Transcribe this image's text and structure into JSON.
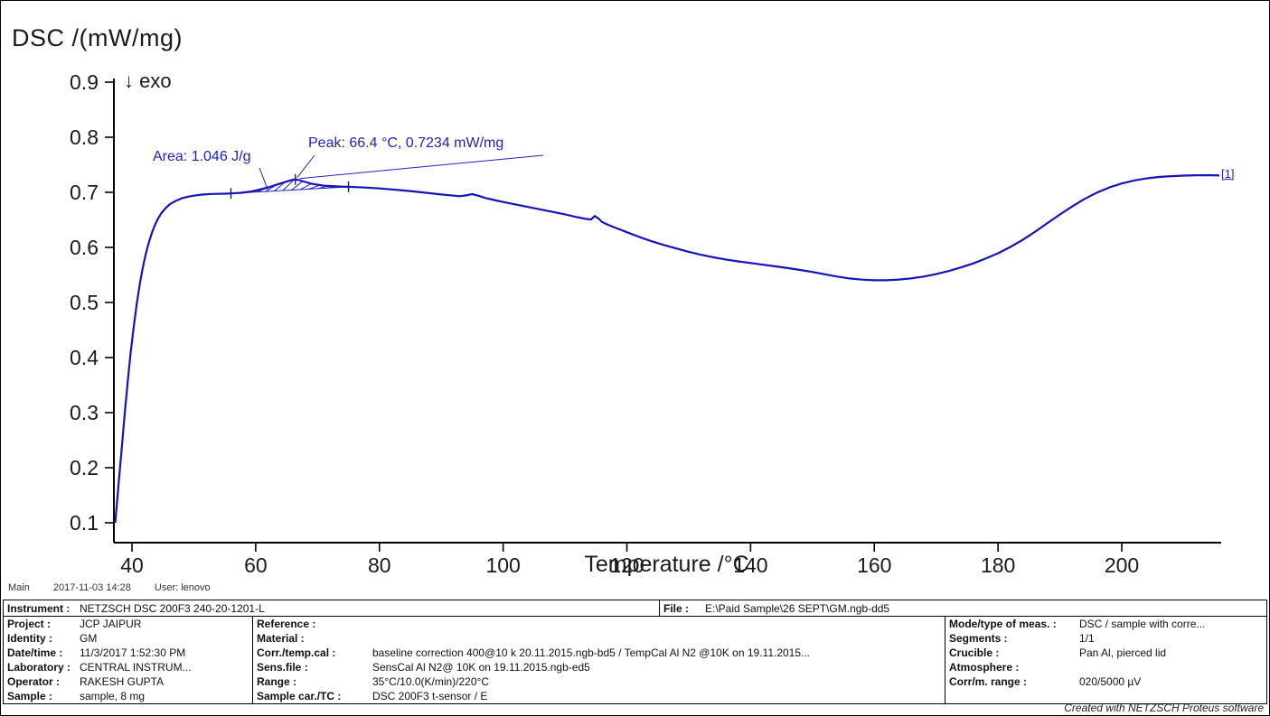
{
  "page": {
    "title": "DSC /(mW/mg)",
    "exo_label": "↓ exo",
    "curve_id": "[1]"
  },
  "annotations": {
    "area": "Area: 1.046 J/g",
    "peak": "Peak: 66.4 °C, 0.7234 mW/mg"
  },
  "status_line": {
    "view": "Main",
    "datetime": "2017-11-03 14:28",
    "user": "User: lenovo"
  },
  "footer_note": "Created with NETZSCH Proteus software",
  "chart_data": {
    "type": "line",
    "title": "DSC /(mW/mg)",
    "xlabel": "Temperature /°C",
    "ylabel": "DSC /(mW/mg)",
    "xlim": [
      35,
      216
    ],
    "ylim": [
      0.1,
      0.9
    ],
    "x_ticks": [
      40,
      60,
      80,
      100,
      120,
      140,
      160,
      180,
      200
    ],
    "y_ticks": [
      0.1,
      0.2,
      0.3,
      0.4,
      0.5,
      0.6,
      0.7,
      0.8,
      0.9
    ],
    "grid": false,
    "legend_position": "none",
    "line_color": "#1414b8",
    "annotation_color": "#2222bb",
    "peak": {
      "temp": 66.4,
      "value": 0.7234
    },
    "area": {
      "range_c": [
        56,
        75
      ],
      "value": "1.046 J/g"
    },
    "series": [
      {
        "name": "[1]",
        "points": [
          [
            37.3,
            0.1
          ],
          [
            37.8,
            0.165
          ],
          [
            38.3,
            0.23
          ],
          [
            38.8,
            0.295
          ],
          [
            39.3,
            0.355
          ],
          [
            39.8,
            0.41
          ],
          [
            40.3,
            0.458
          ],
          [
            40.8,
            0.5
          ],
          [
            41.3,
            0.536
          ],
          [
            41.8,
            0.566
          ],
          [
            42.3,
            0.591
          ],
          [
            42.8,
            0.612
          ],
          [
            43.3,
            0.629
          ],
          [
            43.8,
            0.643
          ],
          [
            44.3,
            0.654
          ],
          [
            44.8,
            0.663
          ],
          [
            45.5,
            0.672
          ],
          [
            46.2,
            0.679
          ],
          [
            47,
            0.684
          ],
          [
            48,
            0.689
          ],
          [
            49,
            0.692
          ],
          [
            50,
            0.694
          ],
          [
            51.5,
            0.696
          ],
          [
            53,
            0.697
          ],
          [
            55,
            0.6975
          ],
          [
            56,
            0.698
          ],
          [
            57.5,
            0.699
          ],
          [
            59,
            0.701
          ],
          [
            60,
            0.7035
          ],
          [
            61,
            0.706
          ],
          [
            62,
            0.709
          ],
          [
            63,
            0.7125
          ],
          [
            64,
            0.716
          ],
          [
            65,
            0.7195
          ],
          [
            66,
            0.7228
          ],
          [
            66.4,
            0.7234
          ],
          [
            67,
            0.7222
          ],
          [
            68,
            0.7188
          ],
          [
            69,
            0.7158
          ],
          [
            70,
            0.7138
          ],
          [
            71,
            0.7122
          ],
          [
            72,
            0.7114
          ],
          [
            73,
            0.7108
          ],
          [
            74,
            0.7104
          ],
          [
            75,
            0.71
          ],
          [
            76.5,
            0.7093
          ],
          [
            78,
            0.7086
          ],
          [
            80,
            0.707
          ],
          [
            82,
            0.7052
          ],
          [
            84,
            0.7032
          ],
          [
            86,
            0.701
          ],
          [
            88,
            0.6985
          ],
          [
            90,
            0.696
          ],
          [
            92,
            0.694
          ],
          [
            93,
            0.693
          ],
          [
            94,
            0.6945
          ],
          [
            95,
            0.6968
          ],
          [
            96,
            0.6938
          ],
          [
            97,
            0.69
          ],
          [
            98.5,
            0.686
          ],
          [
            100,
            0.6825
          ],
          [
            102,
            0.678
          ],
          [
            104,
            0.6735
          ],
          [
            106,
            0.669
          ],
          [
            108,
            0.6645
          ],
          [
            110,
            0.66
          ],
          [
            111.5,
            0.656
          ],
          [
            113,
            0.6525
          ],
          [
            114.2,
            0.6505
          ],
          [
            114.8,
            0.657
          ],
          [
            115.4,
            0.6525
          ],
          [
            116,
            0.646
          ],
          [
            117,
            0.6408
          ],
          [
            118,
            0.6363
          ],
          [
            119,
            0.632
          ],
          [
            120,
            0.6275
          ],
          [
            122,
            0.619
          ],
          [
            124,
            0.6112
          ],
          [
            126,
            0.6042
          ],
          [
            128,
            0.598
          ],
          [
            130,
            0.592
          ],
          [
            132,
            0.5866
          ],
          [
            134,
            0.582
          ],
          [
            136,
            0.578
          ],
          [
            138,
            0.5746
          ],
          [
            140,
            0.5716
          ],
          [
            142,
            0.5686
          ],
          [
            144,
            0.5656
          ],
          [
            146,
            0.5624
          ],
          [
            148,
            0.559
          ],
          [
            150,
            0.5554
          ],
          [
            152,
            0.5512
          ],
          [
            154,
            0.547
          ],
          [
            156,
            0.5436
          ],
          [
            158,
            0.5414
          ],
          [
            160,
            0.5404
          ],
          [
            162,
            0.5404
          ],
          [
            164,
            0.5416
          ],
          [
            166,
            0.5438
          ],
          [
            168,
            0.547
          ],
          [
            170,
            0.5514
          ],
          [
            172,
            0.557
          ],
          [
            174,
            0.5636
          ],
          [
            176,
            0.571
          ],
          [
            178,
            0.5796
          ],
          [
            180,
            0.5894
          ],
          [
            182,
            0.6008
          ],
          [
            184,
            0.6138
          ],
          [
            186,
            0.6285
          ],
          [
            188,
            0.6443
          ],
          [
            190,
            0.6598
          ],
          [
            192,
            0.6745
          ],
          [
            194,
            0.688
          ],
          [
            196,
            0.6995
          ],
          [
            198,
            0.7088
          ],
          [
            200,
            0.716
          ],
          [
            202,
            0.7214
          ],
          [
            204,
            0.7252
          ],
          [
            206,
            0.7278
          ],
          [
            208,
            0.7294
          ],
          [
            210,
            0.7304
          ],
          [
            212,
            0.731
          ],
          [
            214,
            0.7312
          ],
          [
            215.8,
            0.7305
          ]
        ]
      }
    ]
  },
  "table": {
    "instrument_label": "Instrument :",
    "instrument_value": "NETZSCH DSC 200F3 240-20-1201-L",
    "file_label": "File :",
    "file_value": "E:\\Paid Sample\\26 SEPT\\GM.ngb-dd5",
    "rows": [
      {
        "l1": "Project :",
        "v1": "JCP JAIPUR",
        "l2": "Reference :",
        "v2": "",
        "l3": "Mode/type of meas. :",
        "v3": "DSC / sample with corre..."
      },
      {
        "l1": "Identity :",
        "v1": "GM",
        "l2": "Material :",
        "v2": "",
        "l3": "Segments :",
        "v3": "1/1"
      },
      {
        "l1": "Date/time :",
        "v1": "11/3/2017 1:52:30 PM",
        "l2": "Corr./temp.cal :",
        "v2": "baseline correction 400@10 k 20.11.2015.ngb-bd5 / TempCal Al N2 @10K on 19.11.2015...",
        "l3": "Crucible :",
        "v3": "Pan Al, pierced lid"
      },
      {
        "l1": "Laboratory :",
        "v1": "CENTRAL INSTRUM...",
        "l2": "Sens.file :",
        "v2": "SensCal Al N2@ 10K on 19.11.2015.ngb-ed5",
        "l3": "Atmosphere :",
        "v3": ""
      },
      {
        "l1": "Operator :",
        "v1": "RAKESH GUPTA",
        "l2": "Range :",
        "v2": "35°C/10.0(K/min)/220°C",
        "l3": "Corr/m. range :",
        "v3": "020/5000 µV"
      },
      {
        "l1": "Sample :",
        "v1": "sample, 8 mg",
        "l2": "Sample car./TC :",
        "v2": "DSC 200F3 t-sensor / E",
        "l3": "",
        "v3": ""
      }
    ]
  }
}
